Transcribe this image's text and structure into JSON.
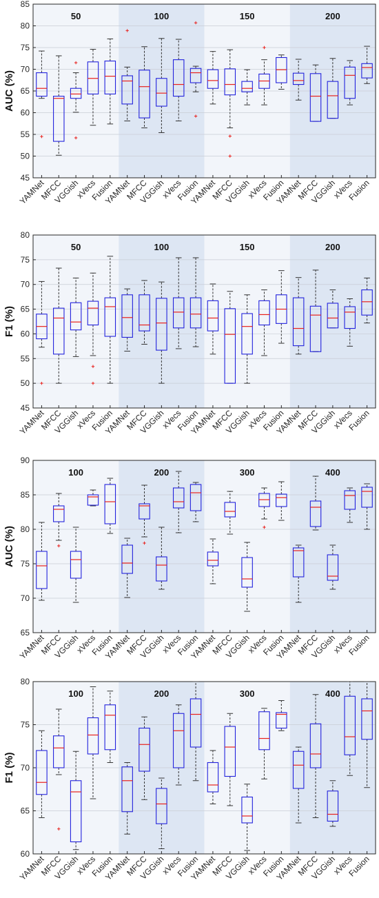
{
  "chart_data": [
    {
      "type": "boxplot",
      "ylabel": "AUC (%)",
      "ylim": [
        45,
        85
      ],
      "yticks": [
        45,
        50,
        55,
        60,
        65,
        70,
        75,
        80,
        85
      ],
      "groups": [
        "50",
        "100",
        "150",
        "200"
      ],
      "categories": [
        "YAMNet",
        "MFCC",
        "VGGish",
        "xVecs",
        "Fusion"
      ],
      "shaded_groups": [
        "100",
        "200"
      ],
      "boxes": [
        [
          {
            "min": 63.3,
            "q1": 63.8,
            "median": 65.6,
            "q3": 69.2,
            "max": 74.2,
            "outliers": [
              54.5
            ]
          },
          {
            "min": 50.2,
            "q1": 53.4,
            "median": 63.3,
            "q3": 63.8,
            "max": 73.1,
            "outliers": []
          },
          {
            "min": 60.1,
            "q1": 63.3,
            "median": 64.3,
            "q3": 65.6,
            "max": 69.2,
            "outliers": [
              71.5,
              54.2
            ]
          },
          {
            "min": 57.1,
            "q1": 64.3,
            "median": 67.9,
            "q3": 71.7,
            "max": 74.6,
            "outliers": []
          },
          {
            "min": 57.4,
            "q1": 64.3,
            "median": 68.4,
            "q3": 71.9,
            "max": 77.0,
            "outliers": []
          }
        ],
        [
          {
            "min": 58.1,
            "q1": 62.0,
            "median": 67.3,
            "q3": 68.5,
            "max": 70.5,
            "outliers": [
              78.9
            ]
          },
          {
            "min": 56.5,
            "q1": 58.8,
            "median": 66.0,
            "q3": 69.8,
            "max": 75.2,
            "outliers": []
          },
          {
            "min": 55.4,
            "q1": 61.5,
            "median": 64.5,
            "q3": 67.9,
            "max": 77.1,
            "outliers": []
          },
          {
            "min": 58.1,
            "q1": 63.8,
            "median": 66.5,
            "q3": 72.2,
            "max": 76.9,
            "outliers": []
          },
          {
            "min": 64.8,
            "q1": 66.9,
            "median": 69.2,
            "q3": 70.2,
            "max": 70.7,
            "outliers": [
              80.7,
              59.2
            ]
          }
        ],
        [
          {
            "min": 62.0,
            "q1": 65.6,
            "median": 67.4,
            "q3": 69.9,
            "max": 74.1,
            "outliers": []
          },
          {
            "min": 56.5,
            "q1": 64.1,
            "median": 66.5,
            "q3": 70.1,
            "max": 74.5,
            "outliers": [
              54.6,
              50.0
            ]
          },
          {
            "min": 61.8,
            "q1": 64.8,
            "median": 65.6,
            "q3": 67.2,
            "max": 69.9,
            "outliers": []
          },
          {
            "min": 61.8,
            "q1": 65.6,
            "median": 67.3,
            "q3": 68.9,
            "max": 72.2,
            "outliers": [
              75.0
            ]
          },
          {
            "min": 65.4,
            "q1": 66.9,
            "median": 69.9,
            "q3": 72.7,
            "max": 73.3,
            "outliers": []
          }
        ],
        [
          {
            "min": 62.9,
            "q1": 66.5,
            "median": 67.4,
            "q3": 69.1,
            "max": 72.3,
            "outliers": []
          },
          {
            "min": 58.0,
            "q1": 58.0,
            "median": 63.8,
            "q3": 69.0,
            "max": 71.0,
            "outliers": []
          },
          {
            "min": 58.7,
            "q1": 58.7,
            "median": 63.9,
            "q3": 67.2,
            "max": 72.5,
            "outliers": []
          },
          {
            "min": 61.8,
            "q1": 63.3,
            "median": 68.6,
            "q3": 70.5,
            "max": 72.0,
            "outliers": []
          },
          {
            "min": 66.7,
            "q1": 68.0,
            "median": 70.4,
            "q3": 71.3,
            "max": 75.3,
            "outliers": []
          }
        ]
      ]
    },
    {
      "type": "boxplot",
      "ylabel": "F1 (%)",
      "ylim": [
        45,
        80
      ],
      "yticks": [
        45,
        50,
        55,
        60,
        65,
        70,
        75,
        80
      ],
      "groups": [
        "50",
        "100",
        "150",
        "200"
      ],
      "categories": [
        "YAMNet",
        "MFCC",
        "VGGish",
        "xVecs",
        "Fusion"
      ],
      "shaded_groups": [
        "100",
        "200"
      ],
      "boxes": [
        [
          {
            "min": 57.3,
            "q1": 59.0,
            "median": 61.5,
            "q3": 64.0,
            "max": 70.6,
            "outliers": [
              50.0
            ]
          },
          {
            "min": 50.0,
            "q1": 55.9,
            "median": 63.2,
            "q3": 65.2,
            "max": 73.3,
            "outliers": []
          },
          {
            "min": 55.4,
            "q1": 60.8,
            "median": 62.4,
            "q3": 66.3,
            "max": 71.3,
            "outliers": []
          },
          {
            "min": 55.6,
            "q1": 61.8,
            "median": 65.2,
            "q3": 66.6,
            "max": 72.3,
            "outliers": [
              53.4,
              50.0
            ]
          },
          {
            "min": 50.0,
            "q1": 59.5,
            "median": 65.5,
            "q3": 67.3,
            "max": 75.7,
            "outliers": []
          }
        ],
        [
          {
            "min": 56.5,
            "q1": 59.3,
            "median": 63.3,
            "q3": 67.9,
            "max": 69.1,
            "outliers": []
          },
          {
            "min": 57.9,
            "q1": 60.6,
            "median": 61.8,
            "q3": 67.9,
            "max": 70.8,
            "outliers": []
          },
          {
            "min": 50.0,
            "q1": 56.7,
            "median": 62.2,
            "q3": 67.2,
            "max": 70.5,
            "outliers": []
          },
          {
            "min": 57.0,
            "q1": 61.2,
            "median": 64.4,
            "q3": 67.3,
            "max": 75.4,
            "outliers": []
          },
          {
            "min": 57.4,
            "q1": 61.2,
            "median": 64.0,
            "q3": 67.3,
            "max": 75.4,
            "outliers": []
          }
        ],
        [
          {
            "min": 55.9,
            "q1": 60.6,
            "median": 63.2,
            "q3": 66.7,
            "max": 70.1,
            "outliers": []
          },
          {
            "min": 50.0,
            "q1": 50.0,
            "median": 59.9,
            "q3": 65.1,
            "max": 68.6,
            "outliers": []
          },
          {
            "min": 50.0,
            "q1": 55.9,
            "median": 61.5,
            "q3": 64.1,
            "max": 67.9,
            "outliers": []
          },
          {
            "min": 55.6,
            "q1": 61.8,
            "median": 63.9,
            "q3": 66.7,
            "max": 68.9,
            "outliers": []
          },
          {
            "min": 58.1,
            "q1": 62.1,
            "median": 65.0,
            "q3": 67.9,
            "max": 72.8,
            "outliers": []
          }
        ],
        [
          {
            "min": 55.9,
            "q1": 57.6,
            "median": 61.1,
            "q3": 67.3,
            "max": 71.4,
            "outliers": []
          },
          {
            "min": 56.4,
            "q1": 56.4,
            "median": 63.8,
            "q3": 65.6,
            "max": 72.9,
            "outliers": []
          },
          {
            "min": 61.2,
            "q1": 61.2,
            "median": 63.2,
            "q3": 66.2,
            "max": 68.9,
            "outliers": []
          },
          {
            "min": 57.5,
            "q1": 61.1,
            "median": 64.4,
            "q3": 65.5,
            "max": 67.1,
            "outliers": []
          },
          {
            "min": 62.2,
            "q1": 63.8,
            "median": 66.5,
            "q3": 68.9,
            "max": 71.3,
            "outliers": []
          }
        ]
      ]
    },
    {
      "type": "boxplot",
      "ylabel": "AUC (%)",
      "ylim": [
        65,
        90
      ],
      "yticks": [
        65,
        70,
        75,
        80,
        85,
        90
      ],
      "groups": [
        "100",
        "200",
        "300",
        "400"
      ],
      "categories": [
        "YAMNet",
        "MFCC",
        "VGGish",
        "xVecs",
        "Fusion"
      ],
      "shaded_groups": [
        "200",
        "400"
      ],
      "boxes": [
        [
          {
            "min": 69.7,
            "q1": 71.4,
            "median": 74.7,
            "q3": 76.8,
            "max": 81.0,
            "outliers": []
          },
          {
            "min": 78.4,
            "q1": 81.1,
            "median": 82.9,
            "q3": 83.4,
            "max": 85.2,
            "outliers": [
              77.6
            ]
          },
          {
            "min": 69.4,
            "q1": 72.9,
            "median": 75.6,
            "q3": 76.8,
            "max": 80.3,
            "outliers": []
          },
          {
            "min": 83.4,
            "q1": 83.5,
            "median": 84.7,
            "q3": 85.0,
            "max": 85.7,
            "outliers": []
          },
          {
            "min": 79.4,
            "q1": 80.8,
            "median": 84.0,
            "q3": 86.5,
            "max": 87.4,
            "outliers": []
          }
        ],
        [
          {
            "min": 70.1,
            "q1": 73.6,
            "median": 75.1,
            "q3": 77.7,
            "max": 78.7,
            "outliers": []
          },
          {
            "min": 78.9,
            "q1": 81.5,
            "median": 83.4,
            "q3": 83.7,
            "max": 86.4,
            "outliers": [
              78.0
            ]
          },
          {
            "min": 71.3,
            "q1": 72.5,
            "median": 74.8,
            "q3": 76.0,
            "max": 80.3,
            "outliers": []
          },
          {
            "min": 79.5,
            "q1": 83.1,
            "median": 84.0,
            "q3": 86.0,
            "max": 88.4,
            "outliers": []
          },
          {
            "min": 81.1,
            "q1": 82.7,
            "median": 85.3,
            "q3": 86.5,
            "max": 86.8,
            "outliers": []
          }
        ],
        [
          {
            "min": 72.1,
            "q1": 74.7,
            "median": 75.5,
            "q3": 76.7,
            "max": 78.6,
            "outliers": []
          },
          {
            "min": 79.3,
            "q1": 81.8,
            "median": 82.6,
            "q3": 83.9,
            "max": 85.5,
            "outliers": []
          },
          {
            "min": 68.1,
            "q1": 71.6,
            "median": 72.8,
            "q3": 75.9,
            "max": 78.1,
            "outliers": []
          },
          {
            "min": 81.5,
            "q1": 83.3,
            "median": 84.3,
            "q3": 85.2,
            "max": 86.0,
            "outliers": [
              80.3
            ]
          },
          {
            "min": 81.3,
            "q1": 83.3,
            "median": 84.6,
            "q3": 85.1,
            "max": 86.9,
            "outliers": []
          }
        ],
        [
          {
            "min": 69.4,
            "q1": 73.1,
            "median": 76.9,
            "q3": 77.3,
            "max": 77.7,
            "outliers": []
          },
          {
            "min": 79.9,
            "q1": 80.4,
            "median": 83.2,
            "q3": 84.1,
            "max": 87.7,
            "outliers": []
          },
          {
            "min": 71.3,
            "q1": 72.6,
            "median": 73.2,
            "q3": 76.3,
            "max": 77.7,
            "outliers": []
          },
          {
            "min": 81.0,
            "q1": 82.9,
            "median": 84.9,
            "q3": 85.6,
            "max": 86.0,
            "outliers": []
          },
          {
            "min": 80.0,
            "q1": 83.2,
            "median": 85.5,
            "q3": 86.1,
            "max": 86.6,
            "outliers": []
          }
        ]
      ]
    },
    {
      "type": "boxplot",
      "ylabel": "F1 (%)",
      "ylim": [
        60,
        80
      ],
      "yticks": [
        60,
        65,
        70,
        75,
        80
      ],
      "groups": [
        "100",
        "200",
        "300",
        "400"
      ],
      "categories": [
        "YAMNet",
        "MFCC",
        "VGGish",
        "xVecs",
        "Fusion"
      ],
      "shaded_groups": [
        "200",
        "400"
      ],
      "boxes": [
        [
          {
            "min": 64.2,
            "q1": 66.9,
            "median": 68.3,
            "q3": 72.0,
            "max": 74.3,
            "outliers": []
          },
          {
            "min": 69.2,
            "q1": 70.0,
            "median": 72.3,
            "q3": 73.7,
            "max": 76.8,
            "outliers": [
              62.9
            ]
          },
          {
            "min": 60.5,
            "q1": 61.4,
            "median": 67.2,
            "q3": 68.5,
            "max": 71.9,
            "outliers": []
          },
          {
            "min": 66.4,
            "q1": 71.6,
            "median": 73.8,
            "q3": 75.8,
            "max": 79.4,
            "outliers": []
          },
          {
            "min": 70.6,
            "q1": 72.1,
            "median": 76.1,
            "q3": 77.3,
            "max": 78.9,
            "outliers": []
          }
        ],
        [
          {
            "min": 62.3,
            "q1": 64.9,
            "median": 68.5,
            "q3": 70.1,
            "max": 70.6,
            "outliers": []
          },
          {
            "min": 66.3,
            "q1": 69.6,
            "median": 72.7,
            "q3": 74.6,
            "max": 75.9,
            "outliers": []
          },
          {
            "min": 60.6,
            "q1": 63.5,
            "median": 65.8,
            "q3": 67.6,
            "max": 68.8,
            "outliers": []
          },
          {
            "min": 68.0,
            "q1": 70.0,
            "median": 74.3,
            "q3": 76.3,
            "max": 77.3,
            "outliers": []
          },
          {
            "min": 68.5,
            "q1": 72.4,
            "median": 76.2,
            "q3": 78.0,
            "max": 80.0,
            "outliers": []
          }
        ],
        [
          {
            "min": 65.8,
            "q1": 67.2,
            "median": 68.0,
            "q3": 70.6,
            "max": 72.0,
            "outliers": []
          },
          {
            "min": 65.6,
            "q1": 69.0,
            "median": 72.4,
            "q3": 74.8,
            "max": 76.3,
            "outliers": []
          },
          {
            "min": 60.4,
            "q1": 63.6,
            "median": 64.4,
            "q3": 66.6,
            "max": 68.1,
            "outliers": []
          },
          {
            "min": 68.7,
            "q1": 72.1,
            "median": 73.4,
            "q3": 76.5,
            "max": 76.9,
            "outliers": []
          },
          {
            "min": 74.3,
            "q1": 74.6,
            "median": 76.2,
            "q3": 76.4,
            "max": 77.8,
            "outliers": []
          }
        ],
        [
          {
            "min": 63.6,
            "q1": 67.6,
            "median": 70.3,
            "q3": 71.9,
            "max": 72.4,
            "outliers": []
          },
          {
            "min": 64.2,
            "q1": 70.0,
            "median": 71.6,
            "q3": 75.1,
            "max": 78.5,
            "outliers": []
          },
          {
            "min": 63.2,
            "q1": 63.8,
            "median": 64.6,
            "q3": 67.3,
            "max": 68.5,
            "outliers": []
          },
          {
            "min": 69.1,
            "q1": 71.5,
            "median": 73.6,
            "q3": 78.3,
            "max": 80.0,
            "outliers": []
          },
          {
            "min": 67.7,
            "q1": 73.3,
            "median": 76.6,
            "q3": 78.0,
            "max": 80.0,
            "outliers": []
          }
        ]
      ]
    }
  ],
  "colors": {
    "box": "#2222dd",
    "median": "#e8201c",
    "whisker": "#333333",
    "outlier": "#e8201c",
    "band_light": "#f2f5fa",
    "band_dark": "#dde6f3",
    "axis": "#262626"
  }
}
